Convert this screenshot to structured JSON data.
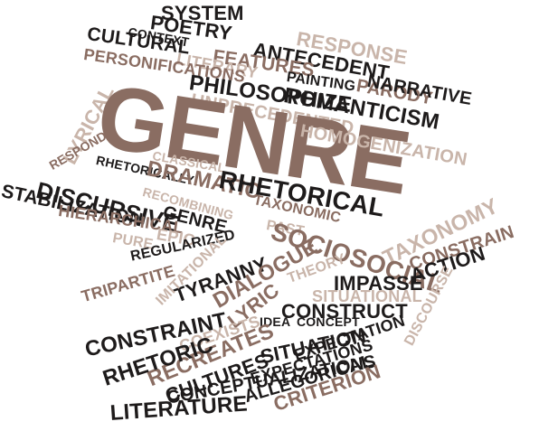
{
  "colors": {
    "dark": "#1e1b1b",
    "brown": "#8a6d62",
    "light": "#c9b5aa",
    "background": "#ffffff"
  },
  "words": {
    "system": "SYSTEM",
    "poetry": "POETRY",
    "context": "CONTEXT",
    "cultural": "CULTURAL",
    "response": "RESPONSE",
    "antecedent": "ANTECEDENT",
    "features": "FEATURES",
    "literary": "LITERARY",
    "personifications": "PERSONIFICATIONS",
    "painting": "PAINTING",
    "parody": "PARODY",
    "narrative": "NARRATIVE",
    "philosophize": "PHILOSOPHIZE",
    "romanticism": "ROMANTICISM",
    "unprecedented": "UNPRECEDENTED",
    "lyrical": "LYRICAL",
    "genre_main": "GENRE",
    "homogenization": "HOMOGENIZATION",
    "respond": "RESPOND",
    "classical": "CLASSICAL",
    "rhetorically": "RHETORICALLY",
    "dramatic": "DRAMATIC",
    "rhetorical": "RHETORICAL",
    "discursive": "DISCURSIVE",
    "recombining": "RECOMBINING",
    "stabilization": "STABILIZATION",
    "taxonomic": "TAXONOMIC",
    "taxonomy": "TAXONOMY",
    "hierarchical": "HIERARCHICAL",
    "genre_small": "GENRE",
    "constrain": "CONSTRAIN",
    "past": "PAST",
    "sociosocial": "SOCIOSOCIAL",
    "pure": "PURE",
    "epic": "EPIC",
    "regularized": "REGULARIZED",
    "tyranny": "TYRANNY",
    "action": "ACTION",
    "tripartite": "TRIPARTITE",
    "imitational": "IMITATIONAL",
    "dialogue": "DIALOGUE",
    "theory": "THEORY",
    "impasse": "IMPASSE",
    "situational": "SITUATIONAL",
    "discourse": "DISCOURSE",
    "lyric": "LYRIC",
    "construct": "CONSTRUCT",
    "idea": "IDEA",
    "concept": "CONCEPT",
    "constraint": "CONSTRAINT",
    "coexists": "COEXISTS",
    "recreates": "RECREATES",
    "situation": "SITUATION",
    "expectation": "EXPECTATION",
    "rhetoric": "RHETORIC",
    "cultures": "CULTURES",
    "expectations": "EXPECTATIONS",
    "conceptualizations": "CONCEPTUALIZATIONS",
    "allegorical": "ALLEGORICAL",
    "criterion": "CRITERION",
    "literature": "LITERATURE"
  }
}
